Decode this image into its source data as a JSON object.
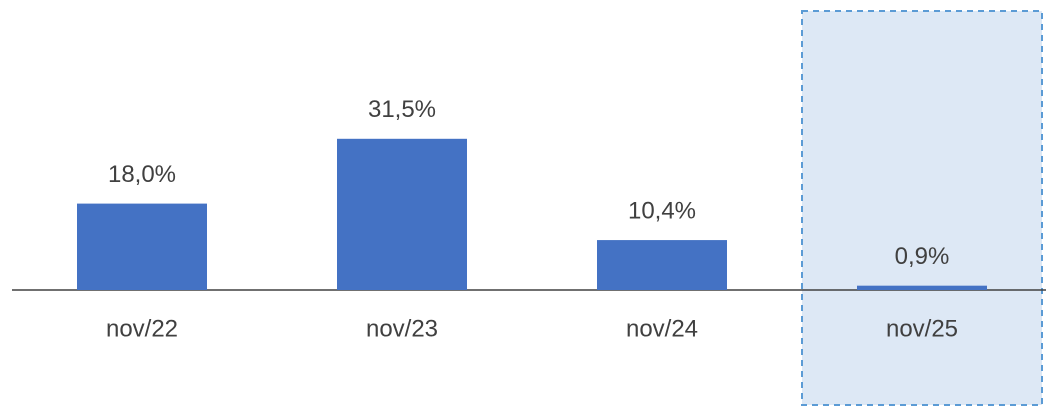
{
  "chart_data": {
    "type": "bar",
    "categories": [
      "nov/22",
      "nov/23",
      "nov/24",
      "nov/25"
    ],
    "values": [
      18.0,
      31.5,
      10.4,
      0.9
    ],
    "value_labels": [
      "18,0%",
      "31,5%",
      "10,4%",
      "0,9%"
    ],
    "color": "#4472c4"
  }
}
